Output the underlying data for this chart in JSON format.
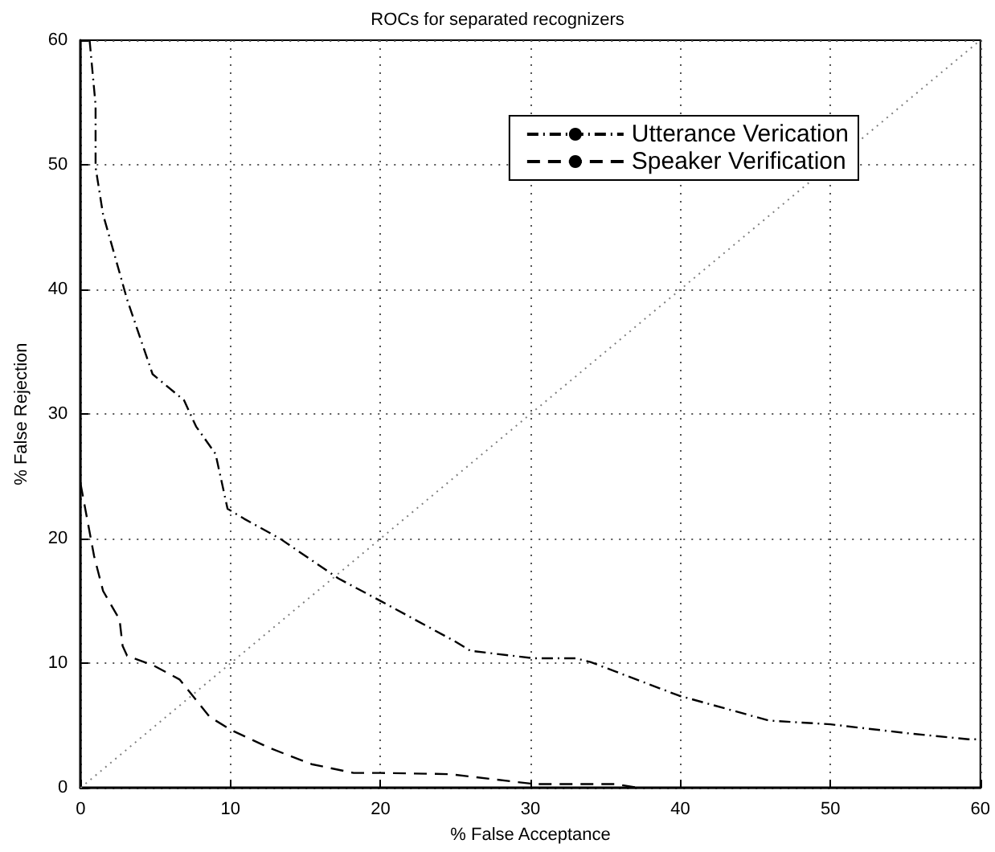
{
  "chart_data": {
    "type": "line",
    "title": "ROCs for separated recognizers",
    "xlabel": "% False Acceptance",
    "ylabel": "% False Rejection",
    "xlim": [
      0,
      60
    ],
    "xticks": [
      0,
      10,
      20,
      30,
      40,
      50,
      60
    ],
    "ylim": [
      0,
      60
    ],
    "yticks": [
      0,
      10,
      20,
      30,
      40,
      50,
      60
    ],
    "grid": true,
    "legend": "top right",
    "marker": "none",
    "series": [
      {
        "name": "Utterance Verication",
        "color": "#000000",
        "line_style": "dashdot",
        "x": [
          0.6,
          1,
          1,
          1.5,
          2,
          3.1,
          4.8,
          6.9,
          7.7,
          9,
          9.8,
          10.9,
          13.3,
          17.2,
          20,
          24.9,
          26,
          30.2,
          33,
          34,
          39.9,
          45.9,
          50,
          55,
          59.2,
          60
        ],
        "values": [
          60,
          54.8,
          49.8,
          46,
          43.9,
          39.2,
          33.2,
          31.1,
          29,
          26.8,
          22.4,
          21.6,
          20,
          16.8,
          15,
          11.8,
          11,
          10.4,
          10.4,
          10.1,
          7.4,
          5.4,
          5.1,
          4.4,
          3.9,
          3.9
        ]
      },
      {
        "name": "Speaker Verification",
        "color": "#000000",
        "line_style": "dashed",
        "x": [
          0,
          0.45,
          0.9,
          1.5,
          2.6,
          2.8,
          3.1,
          4.9,
          6.6,
          8.6,
          10.1,
          12.6,
          15.4,
          18.2,
          20,
          24.6,
          30.3,
          35.7,
          37.2
        ],
        "values": [
          24.4,
          21.5,
          18.6,
          15.8,
          13.5,
          11.4,
          10.6,
          9.8,
          8.7,
          5.7,
          4.6,
          3.2,
          1.9,
          1.2,
          1.2,
          1.1,
          0.3,
          0.3,
          0
        ]
      },
      {
        "color": "#808080",
        "line_style": "dotted",
        "x": [
          0,
          60
        ],
        "values": [
          0,
          60
        ]
      }
    ]
  }
}
